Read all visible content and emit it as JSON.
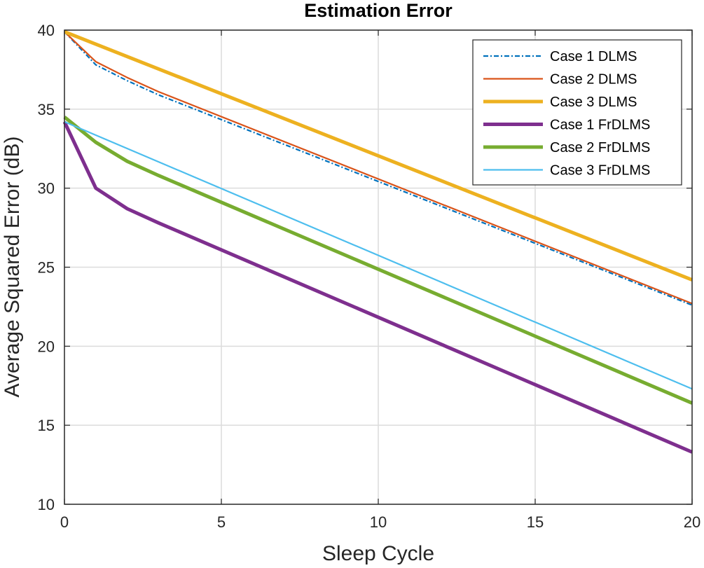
{
  "chart_data": {
    "type": "line",
    "title": "Estimation Error",
    "xlabel": "Sleep Cycle",
    "ylabel": "Average Squared Error (dB)",
    "xlim": [
      0,
      20
    ],
    "ylim": [
      10,
      40
    ],
    "xticks": [
      0,
      5,
      10,
      15,
      20
    ],
    "yticks": [
      10,
      15,
      20,
      25,
      30,
      35,
      40
    ],
    "grid": true,
    "legend_location": "top-right",
    "series": [
      {
        "name": "Case 1 DLMS",
        "color": "#0072BD",
        "style": "dash-dot",
        "width": "thin",
        "x": [
          0,
          1,
          2,
          3,
          20
        ],
        "y": [
          39.9,
          37.8,
          36.8,
          35.9,
          22.6
        ]
      },
      {
        "name": "Case 2 DLMS",
        "color": "#D95319",
        "style": "solid",
        "width": "thin",
        "x": [
          0,
          1,
          2,
          3,
          20
        ],
        "y": [
          39.9,
          38.0,
          37.0,
          36.1,
          22.7
        ]
      },
      {
        "name": "Case 3 DLMS",
        "color": "#EDB120",
        "style": "solid",
        "width": "thick",
        "x": [
          0,
          20
        ],
        "y": [
          39.9,
          24.2
        ]
      },
      {
        "name": "Case 1 FrDLMS",
        "color": "#7E2F8E",
        "style": "solid",
        "width": "thick",
        "x": [
          0,
          1,
          2,
          3,
          20
        ],
        "y": [
          34.2,
          30.0,
          28.7,
          27.8,
          13.3
        ]
      },
      {
        "name": "Case 2 FrDLMS",
        "color": "#77AC30",
        "style": "solid",
        "width": "thick",
        "x": [
          0,
          1,
          2,
          3,
          20
        ],
        "y": [
          34.5,
          32.9,
          31.7,
          30.8,
          16.4
        ]
      },
      {
        "name": "Case 3 FrDLMS",
        "color": "#4DBEEE",
        "style": "solid",
        "width": "thin",
        "x": [
          0,
          20
        ],
        "y": [
          34.2,
          17.3
        ]
      }
    ]
  }
}
